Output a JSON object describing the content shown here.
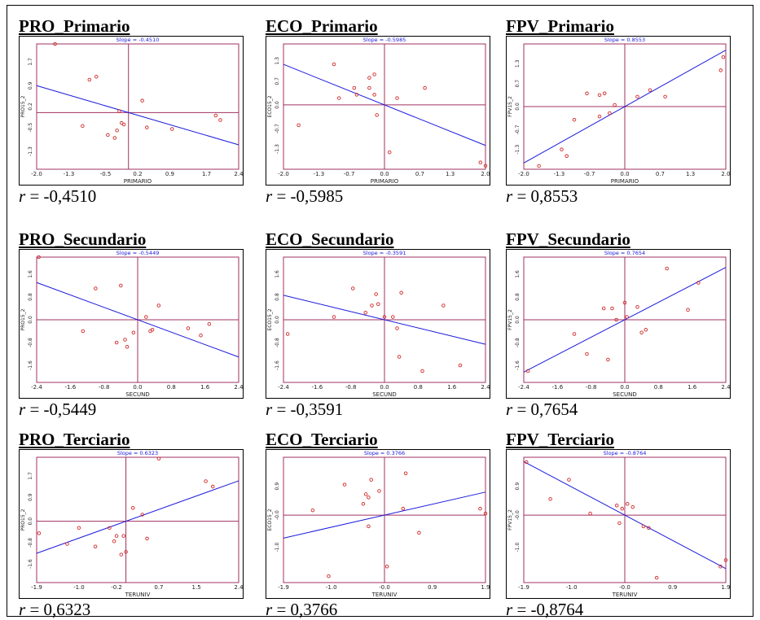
{
  "chart_data": [
    {
      "type": "scatter",
      "title": "PRO_Primario",
      "slope_label": "Slope = -0.4510",
      "xlabel": "PRIMARIO",
      "ylabel": "PRO15_2",
      "xticks": [
        "-2.0",
        "-1.3",
        "-0.5",
        "0.2",
        "0.9",
        "1.7",
        "2.4"
      ],
      "xtick_vals": [
        -2.0,
        -1.3,
        -0.5,
        0.2,
        0.9,
        1.7,
        2.4
      ],
      "yticks": [
        "1.7",
        "0.9",
        "0.2",
        "-0.5",
        "-1.3"
      ],
      "ytick_vals": [
        1.7,
        0.9,
        0.2,
        -0.5,
        -1.3
      ],
      "xlim": [
        -2.0,
        2.4
      ],
      "ylim": [
        -1.9,
        2.3
      ],
      "slope": -0.451,
      "r_text": "-0,4510",
      "points": [
        [
          -1.6,
          2.3
        ],
        [
          -0.85,
          1.1
        ],
        [
          -0.7,
          1.2
        ],
        [
          -1.0,
          -0.45
        ],
        [
          -0.45,
          -0.75
        ],
        [
          -0.25,
          -0.6
        ],
        [
          -0.2,
          0.05
        ],
        [
          -0.15,
          -0.35
        ],
        [
          -0.1,
          -0.4
        ],
        [
          -0.3,
          -0.85
        ],
        [
          0.3,
          0.4
        ],
        [
          0.4,
          -0.5
        ],
        [
          0.95,
          -0.55
        ],
        [
          1.9,
          -0.1
        ],
        [
          2.0,
          -0.25
        ]
      ]
    },
    {
      "type": "scatter",
      "title": "ECO_Primario",
      "slope_label": "Slope = -0.5985",
      "xlabel": "PRIMARIO",
      "ylabel": "ECO15_2",
      "xticks": [
        "-2.0",
        "-1.3",
        "-0.7",
        "0.0",
        "0.7",
        "1.3",
        "2.0"
      ],
      "xtick_vals": [
        -2.0,
        -1.3,
        -0.7,
        0.0,
        0.7,
        1.3,
        2.0
      ],
      "yticks": [
        "1.3",
        "0.7",
        "0.0",
        "-0.7",
        "-1.3"
      ],
      "ytick_vals": [
        1.3,
        0.7,
        0.0,
        -0.7,
        -1.3
      ],
      "xlim": [
        -2.0,
        2.0
      ],
      "ylim": [
        -1.9,
        1.8
      ],
      "slope": -0.5985,
      "r_text": "-0,5985",
      "points": [
        [
          -1.7,
          -0.6
        ],
        [
          -1.0,
          1.2
        ],
        [
          -0.9,
          0.2
        ],
        [
          -0.6,
          0.5
        ],
        [
          -0.55,
          0.3
        ],
        [
          -0.3,
          0.8
        ],
        [
          -0.3,
          0.5
        ],
        [
          -0.2,
          0.9
        ],
        [
          -0.2,
          0.3
        ],
        [
          -0.15,
          -0.3
        ],
        [
          0.1,
          -1.4
        ],
        [
          0.25,
          0.2
        ],
        [
          0.8,
          0.5
        ],
        [
          1.9,
          -1.7
        ],
        [
          2.0,
          -1.8
        ]
      ]
    },
    {
      "type": "scatter",
      "title": "FPV_Primario",
      "slope_label": "Slope = 0.8553",
      "xlabel": "PRIMARIO",
      "ylabel": "FPV15_2",
      "xticks": [
        "-2.0",
        "-1.3",
        "-0.7",
        "0.0",
        "0.7",
        "1.3",
        "2.0"
      ],
      "xtick_vals": [
        -2.0,
        -1.3,
        -0.7,
        0.0,
        0.7,
        1.3,
        2.0
      ],
      "yticks": [
        "1.3",
        "0.7",
        "0.0",
        "-0.7",
        "-1.3"
      ],
      "ytick_vals": [
        1.3,
        0.7,
        0.0,
        -0.7,
        -1.3
      ],
      "xlim": [
        -2.0,
        2.0
      ],
      "ylim": [
        -1.9,
        1.9
      ],
      "slope": 0.8553,
      "r_text": "0,8553",
      "points": [
        [
          -1.7,
          -1.8
        ],
        [
          -1.25,
          -1.3
        ],
        [
          -1.15,
          -1.5
        ],
        [
          -1.0,
          -0.4
        ],
        [
          -0.75,
          0.4
        ],
        [
          -0.5,
          0.35
        ],
        [
          -0.5,
          -0.3
        ],
        [
          -0.4,
          0.4
        ],
        [
          -0.3,
          -0.2
        ],
        [
          -0.2,
          0.05
        ],
        [
          0.25,
          0.3
        ],
        [
          0.5,
          0.5
        ],
        [
          0.8,
          0.3
        ],
        [
          1.9,
          1.1
        ],
        [
          1.95,
          1.5
        ]
      ]
    },
    {
      "type": "scatter",
      "title": "PRO_Secundario",
      "slope_label": "Slope = -0.5449",
      "xlabel": "SECUND",
      "ylabel": "PRO15_2",
      "xticks": [
        "-2.4",
        "-1.6",
        "-0.8",
        "0.0",
        "0.8",
        "1.6",
        "2.4"
      ],
      "xtick_vals": [
        -2.4,
        -1.6,
        -0.8,
        0.0,
        0.8,
        1.6,
        2.4
      ],
      "yticks": [
        "1.6",
        "0.8",
        "0.0",
        "-0.8",
        "-1.6"
      ],
      "ytick_vals": [
        1.6,
        0.8,
        0.0,
        -0.8,
        -1.6
      ],
      "xlim": [
        -2.4,
        2.4
      ],
      "ylim": [
        -2.2,
        2.2
      ],
      "slope": -0.5449,
      "r_text": "-0,5449",
      "points": [
        [
          -2.35,
          2.2
        ],
        [
          -1.3,
          -0.4
        ],
        [
          -1.0,
          1.1
        ],
        [
          -0.5,
          -0.8
        ],
        [
          -0.4,
          1.2
        ],
        [
          -0.3,
          -0.7
        ],
        [
          -0.25,
          -0.95
        ],
        [
          -0.1,
          -0.45
        ],
        [
          0.2,
          0.1
        ],
        [
          0.3,
          -0.4
        ],
        [
          0.35,
          -0.35
        ],
        [
          0.5,
          0.5
        ],
        [
          1.2,
          -0.3
        ],
        [
          1.5,
          -0.55
        ],
        [
          1.7,
          -0.15
        ]
      ]
    },
    {
      "type": "scatter",
      "title": "ECO_Secundario",
      "slope_label": "Slope = -0.3591",
      "xlabel": "SECUND",
      "ylabel": "ECO15_2",
      "xticks": [
        "-2.4",
        "-1.6",
        "-0.8",
        "0.0",
        "0.8",
        "1.6",
        "2.4"
      ],
      "xtick_vals": [
        -2.4,
        -1.6,
        -0.8,
        0.0,
        0.8,
        1.6,
        2.4
      ],
      "yticks": [
        "1.6",
        "0.8",
        "0.0",
        "-0.8",
        "-1.6"
      ],
      "ytick_vals": [
        1.6,
        0.8,
        0.0,
        -0.8,
        -1.6
      ],
      "xlim": [
        -2.4,
        2.4
      ],
      "ylim": [
        -2.2,
        2.2
      ],
      "slope": -0.3591,
      "r_text": "-0,3591",
      "points": [
        [
          -2.3,
          -0.5
        ],
        [
          -1.2,
          0.1
        ],
        [
          -0.75,
          1.1
        ],
        [
          -0.45,
          0.25
        ],
        [
          -0.3,
          0.5
        ],
        [
          -0.2,
          0.9
        ],
        [
          -0.15,
          0.55
        ],
        [
          0.0,
          0.1
        ],
        [
          0.2,
          0.1
        ],
        [
          0.3,
          -0.3
        ],
        [
          0.35,
          -1.3
        ],
        [
          0.4,
          0.95
        ],
        [
          0.9,
          -1.8
        ],
        [
          1.4,
          0.5
        ],
        [
          1.8,
          -1.6
        ]
      ]
    },
    {
      "type": "scatter",
      "title": "FPV_Secundario",
      "slope_label": "Slope = 0.7654",
      "xlabel": "SECUND",
      "ylabel": "FPV15_2",
      "xticks": [
        "-2.4",
        "-1.6",
        "-0.8",
        "0.0",
        "0.8",
        "1.6",
        "2.4"
      ],
      "xtick_vals": [
        -2.4,
        -1.6,
        -0.8,
        0.0,
        0.8,
        1.6,
        2.4
      ],
      "yticks": [
        "1.6",
        "0.8",
        "0.0",
        "-0.8",
        "-1.6"
      ],
      "ytick_vals": [
        1.6,
        0.8,
        0.0,
        -0.8,
        -1.6
      ],
      "xlim": [
        -2.4,
        2.4
      ],
      "ylim": [
        -2.2,
        2.2
      ],
      "slope": 0.7654,
      "r_text": "0,7654",
      "points": [
        [
          -2.3,
          -1.8
        ],
        [
          -1.2,
          -0.5
        ],
        [
          -0.9,
          -1.2
        ],
        [
          -0.5,
          0.4
        ],
        [
          -0.4,
          -1.4
        ],
        [
          -0.3,
          0.4
        ],
        [
          -0.2,
          0.0
        ],
        [
          0.0,
          0.6
        ],
        [
          0.05,
          0.1
        ],
        [
          0.3,
          0.45
        ],
        [
          0.4,
          -0.45
        ],
        [
          0.5,
          -0.35
        ],
        [
          1.0,
          1.8
        ],
        [
          1.5,
          0.35
        ],
        [
          1.75,
          1.3
        ]
      ]
    },
    {
      "type": "scatter",
      "title": "PRO_Terciario",
      "slope_label": "Slope = 0.6323",
      "xlabel": "TERUNIV",
      "ylabel": "PRO15_2",
      "xticks": [
        "-1.9",
        "-1.0",
        "-0.2",
        "0.7",
        "1.5",
        "2.4"
      ],
      "xtick_vals": [
        -1.9,
        -1.0,
        -0.2,
        0.7,
        1.5,
        2.4
      ],
      "yticks": [
        "1.7",
        "0.9",
        "0.0",
        "-0.8",
        "-1.6"
      ],
      "ytick_vals": [
        1.7,
        0.9,
        0.0,
        -0.8,
        -1.6
      ],
      "xlim": [
        -1.9,
        2.4
      ],
      "ylim": [
        -2.3,
        2.4
      ],
      "slope": 0.6323,
      "r_text": "0,6323",
      "points": [
        [
          -1.85,
          -0.45
        ],
        [
          -1.25,
          -0.85
        ],
        [
          -1.0,
          -0.25
        ],
        [
          -0.65,
          -0.95
        ],
        [
          -0.35,
          -0.25
        ],
        [
          -0.25,
          -0.75
        ],
        [
          -0.2,
          -0.55
        ],
        [
          -0.1,
          -1.25
        ],
        [
          -0.05,
          -0.55
        ],
        [
          0.0,
          -1.15
        ],
        [
          0.15,
          0.5
        ],
        [
          0.35,
          0.25
        ],
        [
          0.45,
          -0.65
        ],
        [
          0.7,
          2.35
        ],
        [
          1.7,
          1.5
        ],
        [
          1.85,
          1.3
        ]
      ]
    },
    {
      "type": "scatter",
      "title": "ECO_Terciario",
      "slope_label": "Slope = 0.3766",
      "xlabel": "TERUNIV",
      "ylabel": "ECO15_2",
      "xticks": [
        "-1.9",
        "-1.0",
        "-0.0",
        "0.9",
        "1.9"
      ],
      "xtick_vals": [
        -1.9,
        -1.0,
        0.0,
        0.9,
        1.9
      ],
      "yticks": [
        "0.9",
        "-0.0",
        "-1.0"
      ],
      "ytick_vals": [
        0.9,
        0.0,
        -1.0
      ],
      "xlim": [
        -1.9,
        1.9
      ],
      "ylim": [
        -2.1,
        1.8
      ],
      "slope": 0.3766,
      "r_text": "0,3766",
      "points": [
        [
          -1.35,
          0.15
        ],
        [
          -1.05,
          -1.9
        ],
        [
          -0.75,
          0.95
        ],
        [
          -0.4,
          0.35
        ],
        [
          -0.35,
          0.65
        ],
        [
          -0.3,
          0.55
        ],
        [
          -0.3,
          -0.35
        ],
        [
          -0.25,
          1.1
        ],
        [
          -0.1,
          0.75
        ],
        [
          0.05,
          -1.6
        ],
        [
          0.35,
          0.2
        ],
        [
          0.4,
          1.3
        ],
        [
          0.65,
          -0.55
        ],
        [
          1.8,
          0.2
        ],
        [
          1.9,
          0.05
        ]
      ]
    },
    {
      "type": "scatter",
      "title": "FPV_Terciario",
      "slope_label": "Slope = -0.8764",
      "xlabel": "TERUNIV",
      "ylabel": "FPV15_2",
      "xticks": [
        "-1.9",
        "-1.0",
        "-0.0",
        "0.9",
        "1.9"
      ],
      "xtick_vals": [
        -1.9,
        -1.0,
        0.0,
        0.9,
        1.9
      ],
      "yticks": [
        "0.9",
        "-0.0",
        "-1.0"
      ],
      "ytick_vals": [
        0.9,
        0.0,
        -1.0
      ],
      "xlim": [
        -1.9,
        1.9
      ],
      "ylim": [
        -2.1,
        1.8
      ],
      "slope": -0.8764,
      "r_text": "-0,8764",
      "points": [
        [
          -1.85,
          1.65
        ],
        [
          -1.4,
          0.5
        ],
        [
          -1.05,
          1.1
        ],
        [
          -0.65,
          0.05
        ],
        [
          -0.15,
          0.3
        ],
        [
          -0.1,
          -0.25
        ],
        [
          -0.05,
          0.2
        ],
        [
          0.05,
          0.35
        ],
        [
          0.15,
          0.25
        ],
        [
          0.35,
          -0.35
        ],
        [
          0.45,
          -0.4
        ],
        [
          0.6,
          -1.95
        ],
        [
          1.8,
          -1.6
        ],
        [
          1.9,
          -1.4
        ]
      ]
    }
  ]
}
